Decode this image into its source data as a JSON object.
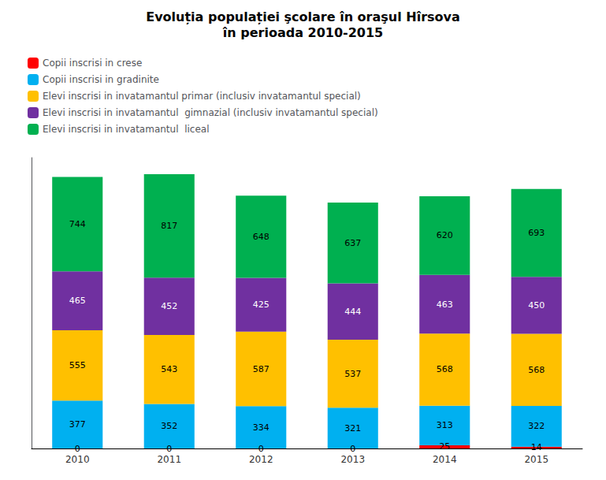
{
  "chart_data": {
    "type": "bar",
    "title": "Evoluția populației şcolare în oraşul Hîrsova",
    "subtitle": "în perioada 2010-2015",
    "categories": [
      "2010",
      "2011",
      "2012",
      "2013",
      "2014",
      "2015"
    ],
    "series": [
      {
        "name": "Copii inscrisi in crese",
        "color": "#FF0000",
        "values": [
          0,
          0,
          0,
          0,
          25,
          14
        ]
      },
      {
        "name": "Copii inscrisi in gradinite",
        "color": "#00B0F0",
        "values": [
          377,
          352,
          334,
          321,
          313,
          322
        ]
      },
      {
        "name": "Elevi inscrisi in invatamantul primar (inclusiv invatamantul special)",
        "color": "#FFC000",
        "values": [
          555,
          543,
          587,
          537,
          568,
          568
        ]
      },
      {
        "name": "Elevi inscrisi in invatamantul  gimnazial (inclusiv invatamantul special)",
        "color": "#7030A0",
        "values": [
          465,
          452,
          425,
          444,
          463,
          450
        ]
      },
      {
        "name": "Elevi inscrisi in invatamantul  liceal",
        "color": "#00B050",
        "values": [
          744,
          817,
          648,
          637,
          620,
          693
        ]
      }
    ],
    "stacked": true,
    "data_labels": true,
    "ylim": [
      0,
      2293.84
    ],
    "tick_labels": "x",
    "grid": false,
    "legend": "upper left"
  }
}
